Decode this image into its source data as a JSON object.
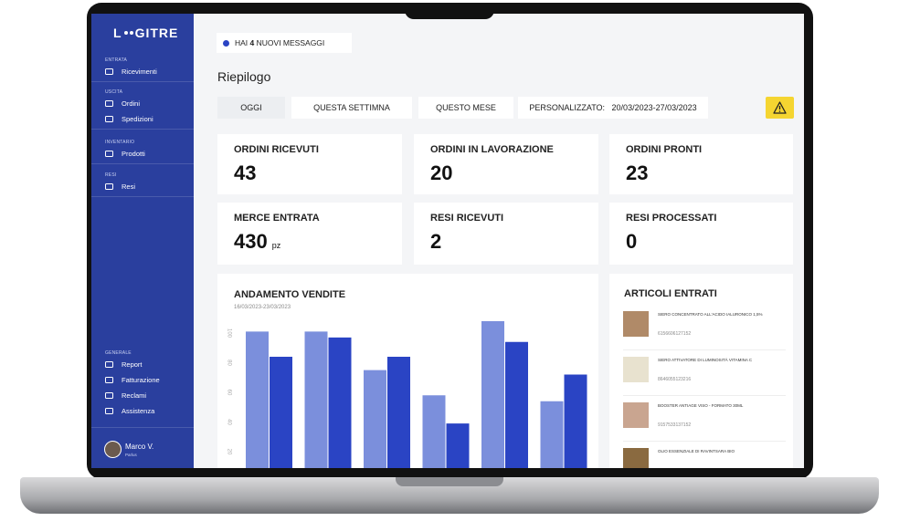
{
  "sidebar": {
    "logo_left": "L",
    "logo_right": "GITRE",
    "sections": [
      {
        "title": "ENTRATA",
        "items": [
          "Ricevimenti"
        ]
      },
      {
        "title": "USCITA",
        "items": [
          "Ordini",
          "Spedizioni"
        ]
      },
      {
        "title": "INVENTARIO",
        "items": [
          "Prodotti"
        ]
      },
      {
        "title": "RESI",
        "items": [
          "Resi"
        ]
      },
      {
        "title": "GENERALE",
        "items": [
          "Report",
          "Fatturazione",
          "Reclami",
          "Assistenza"
        ]
      }
    ],
    "user": {
      "name": "Marco V.",
      "role": "Parlus"
    }
  },
  "messages": {
    "before": "HAI",
    "count": "4",
    "after": "NUOVI MESSAGGI"
  },
  "page_title": "Riepilogo",
  "filters": [
    "OGGI",
    "QUESTA SETTIMNA",
    "QUESTO MESE"
  ],
  "custom_filter": {
    "label": "PERSONALIZZATO:",
    "range": "20/03/2023-27/03/2023"
  },
  "stats": [
    {
      "label": "ORDINI RICEVUTI",
      "value": "43"
    },
    {
      "label": "ORDINI IN LAVORAZIONE",
      "value": "20"
    },
    {
      "label": "ORDINI PRONTI",
      "value": "23"
    },
    {
      "label": "MERCE ENTRATA",
      "value": "430",
      "unit": "pz"
    },
    {
      "label": "RESI RICEVUTI",
      "value": "2"
    },
    {
      "label": "RESI PROCESSATI",
      "value": "0"
    }
  ],
  "chart_data": {
    "type": "bar",
    "title": "ANDAMENTO VENDITE",
    "subtitle": "16/03/2023-23/03/2023",
    "series": [
      {
        "color": "#7b8fdc",
        "values": [
          101,
          101,
          75,
          58,
          108,
          54
        ]
      },
      {
        "color": "#2a44c4",
        "values": [
          84,
          97,
          84,
          39,
          94,
          72
        ]
      }
    ],
    "ylim": [
      0,
      110
    ],
    "yticks": [
      20,
      40,
      60,
      80,
      100
    ],
    "grid": false
  },
  "articles": {
    "title": "ARTICOLI ENTRATI",
    "items": [
      {
        "name": "SIERO CONCENTRATO ALL'ACIDO IALURONICO 1,5%",
        "code": "6156606127152"
      },
      {
        "name": "SIERO ATTIVATORE DI LUMINOSITÀ VITAMINA C",
        "code": "8646055123216"
      },
      {
        "name": "BOOSTER ANTIAGE VISO - FORMATO 30ML",
        "code": "9157533137152"
      },
      {
        "name": "OLIO ESSENZIALE DI RAVINTSARA BIO"
      }
    ]
  }
}
